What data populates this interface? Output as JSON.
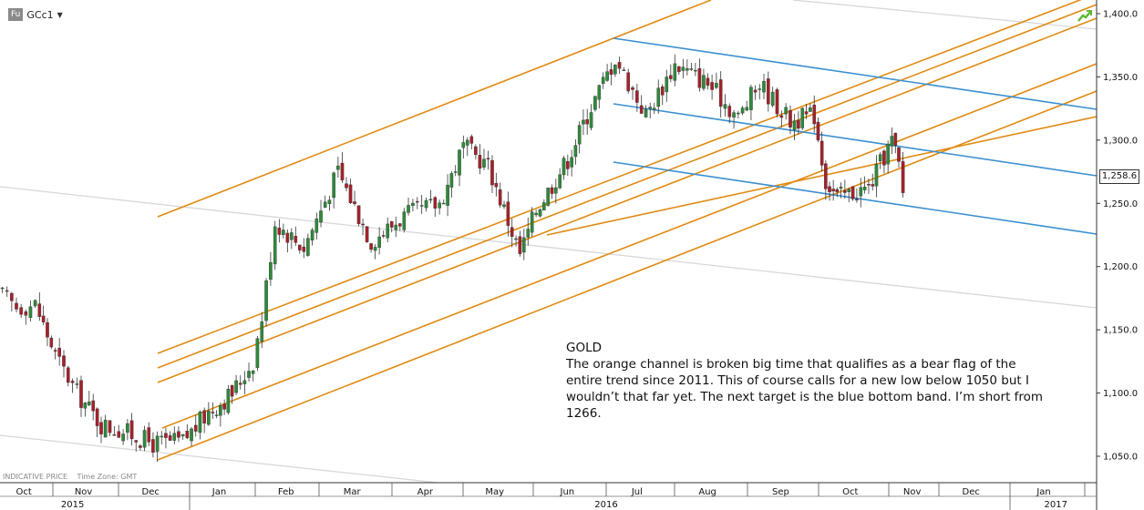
{
  "header": {
    "exchange_badge": "Fu",
    "symbol": "GCc1",
    "dropdown_icon": "chevron-down-icon"
  },
  "footer": {
    "price_type": "INDICATIVE PRICE",
    "timezone": "Time Zone: GMT"
  },
  "note": {
    "title": "GOLD",
    "body": "The orange channel is broken big time that qualifies as a bear flag of the entire trend since 2011. This of course calls for a new low below 1050 but I wouldn’t that far yet.  The next target is the blue bottom band. I’m short from 1266."
  },
  "last_price_label": "1,258.6",
  "colors": {
    "up_candle": "#2e8b3a",
    "down_candle": "#a8202a",
    "orange_lines": "#e08a12",
    "blue_lines": "#3a8fd0",
    "grey_lines": "#d8d8d8",
    "signal_icon": "#5cb82e"
  },
  "chart_data": {
    "type": "candlestick",
    "instrument": "GCc1",
    "ylim": [
      1040,
      1410
    ],
    "y_ticks": [
      1050,
      1100,
      1150,
      1200,
      1250,
      1300,
      1350,
      1400
    ],
    "y_tick_labels": [
      "1,050.0",
      "1,100.0",
      "1,150.0",
      "1,200.0",
      "1,250.0",
      "1,300.0",
      "1,350.0",
      "1,400.0"
    ],
    "x_months": [
      "Oct",
      "Nov",
      "Dec",
      "Jan",
      "Feb",
      "Mar",
      "Apr",
      "May",
      "Jun",
      "Jul",
      "Aug",
      "Sep",
      "Oct",
      "Nov",
      "Dec",
      "Jan"
    ],
    "x_years": [
      "2015",
      "2016",
      "2017"
    ],
    "last_price": 1258.6,
    "close_path": [
      {
        "date": "2015-10-01",
        "close": 1180
      },
      {
        "date": "2015-10-12",
        "close": 1168
      },
      {
        "date": "2015-10-23",
        "close": 1170
      },
      {
        "date": "2015-11-03",
        "close": 1130
      },
      {
        "date": "2015-11-13",
        "close": 1100
      },
      {
        "date": "2015-11-24",
        "close": 1075
      },
      {
        "date": "2015-12-04",
        "close": 1070
      },
      {
        "date": "2015-12-17",
        "close": 1060
      },
      {
        "date": "2015-12-30",
        "close": 1062
      },
      {
        "date": "2016-01-11",
        "close": 1085
      },
      {
        "date": "2016-01-22",
        "close": 1100
      },
      {
        "date": "2016-02-01",
        "close": 1125
      },
      {
        "date": "2016-02-05",
        "close": 1160
      },
      {
        "date": "2016-02-11",
        "close": 1235
      },
      {
        "date": "2016-02-24",
        "close": 1215
      },
      {
        "date": "2016-03-10",
        "close": 1275
      },
      {
        "date": "2016-03-24",
        "close": 1220
      },
      {
        "date": "2016-04-07",
        "close": 1240
      },
      {
        "date": "2016-04-22",
        "close": 1250
      },
      {
        "date": "2016-05-02",
        "close": 1295
      },
      {
        "date": "2016-05-13",
        "close": 1280
      },
      {
        "date": "2016-05-27",
        "close": 1210
      },
      {
        "date": "2016-06-03",
        "close": 1245
      },
      {
        "date": "2016-06-16",
        "close": 1285
      },
      {
        "date": "2016-06-24",
        "close": 1320
      },
      {
        "date": "2016-07-06",
        "close": 1365
      },
      {
        "date": "2016-07-20",
        "close": 1320
      },
      {
        "date": "2016-08-02",
        "close": 1360
      },
      {
        "date": "2016-08-16",
        "close": 1345
      },
      {
        "date": "2016-08-29",
        "close": 1318
      },
      {
        "date": "2016-09-07",
        "close": 1345
      },
      {
        "date": "2016-09-20",
        "close": 1315
      },
      {
        "date": "2016-09-30",
        "close": 1320
      },
      {
        "date": "2016-10-05",
        "close": 1268
      },
      {
        "date": "2016-10-10",
        "close": 1255
      },
      {
        "date": "2016-10-24",
        "close": 1262
      },
      {
        "date": "2016-11-04",
        "close": 1300
      },
      {
        "date": "2016-11-08",
        "close": 1280
      },
      {
        "date": "2016-11-11",
        "close": 1258.6
      }
    ],
    "annotations": {
      "orange_channel_lines": 7,
      "blue_channel_lines": 3
    }
  }
}
